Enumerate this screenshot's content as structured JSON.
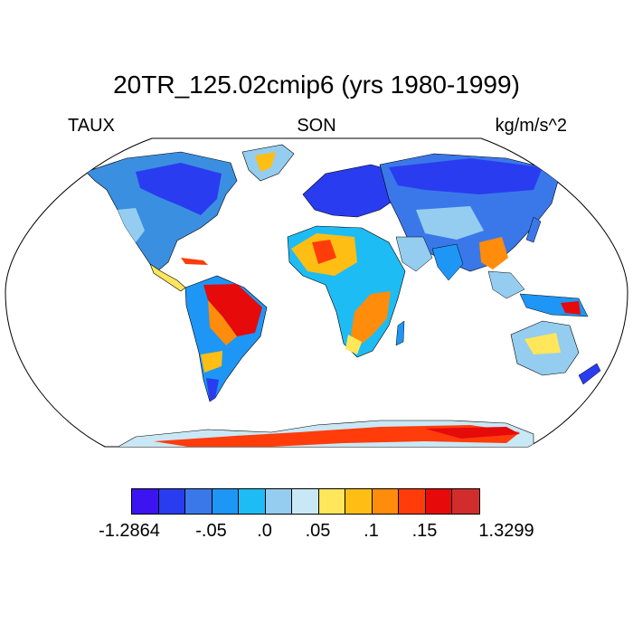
{
  "title": "20TR_125.02cmip6 (yrs 1980-1999)",
  "left_label": "TAUX",
  "center_label": "SON",
  "right_label": "kg/m/s^2",
  "colorbar": {
    "colors": [
      "#3c14f0",
      "#2a3cf0",
      "#3a78ea",
      "#1e96f5",
      "#1ebcf5",
      "#94cdef",
      "#c9e8f6",
      "#ffe65a",
      "#ffbe14",
      "#ff8c0a",
      "#ff3c0a",
      "#e60a0a",
      "#d22d2d"
    ],
    "tick_labels": [
      "-1.2864",
      "-.05",
      ".0",
      ".05",
      ".1",
      ".15",
      "1.3299"
    ]
  },
  "map": {
    "projection": "Robinson",
    "ocean_color": "#ffffff",
    "coastline_color": "#000000"
  }
}
